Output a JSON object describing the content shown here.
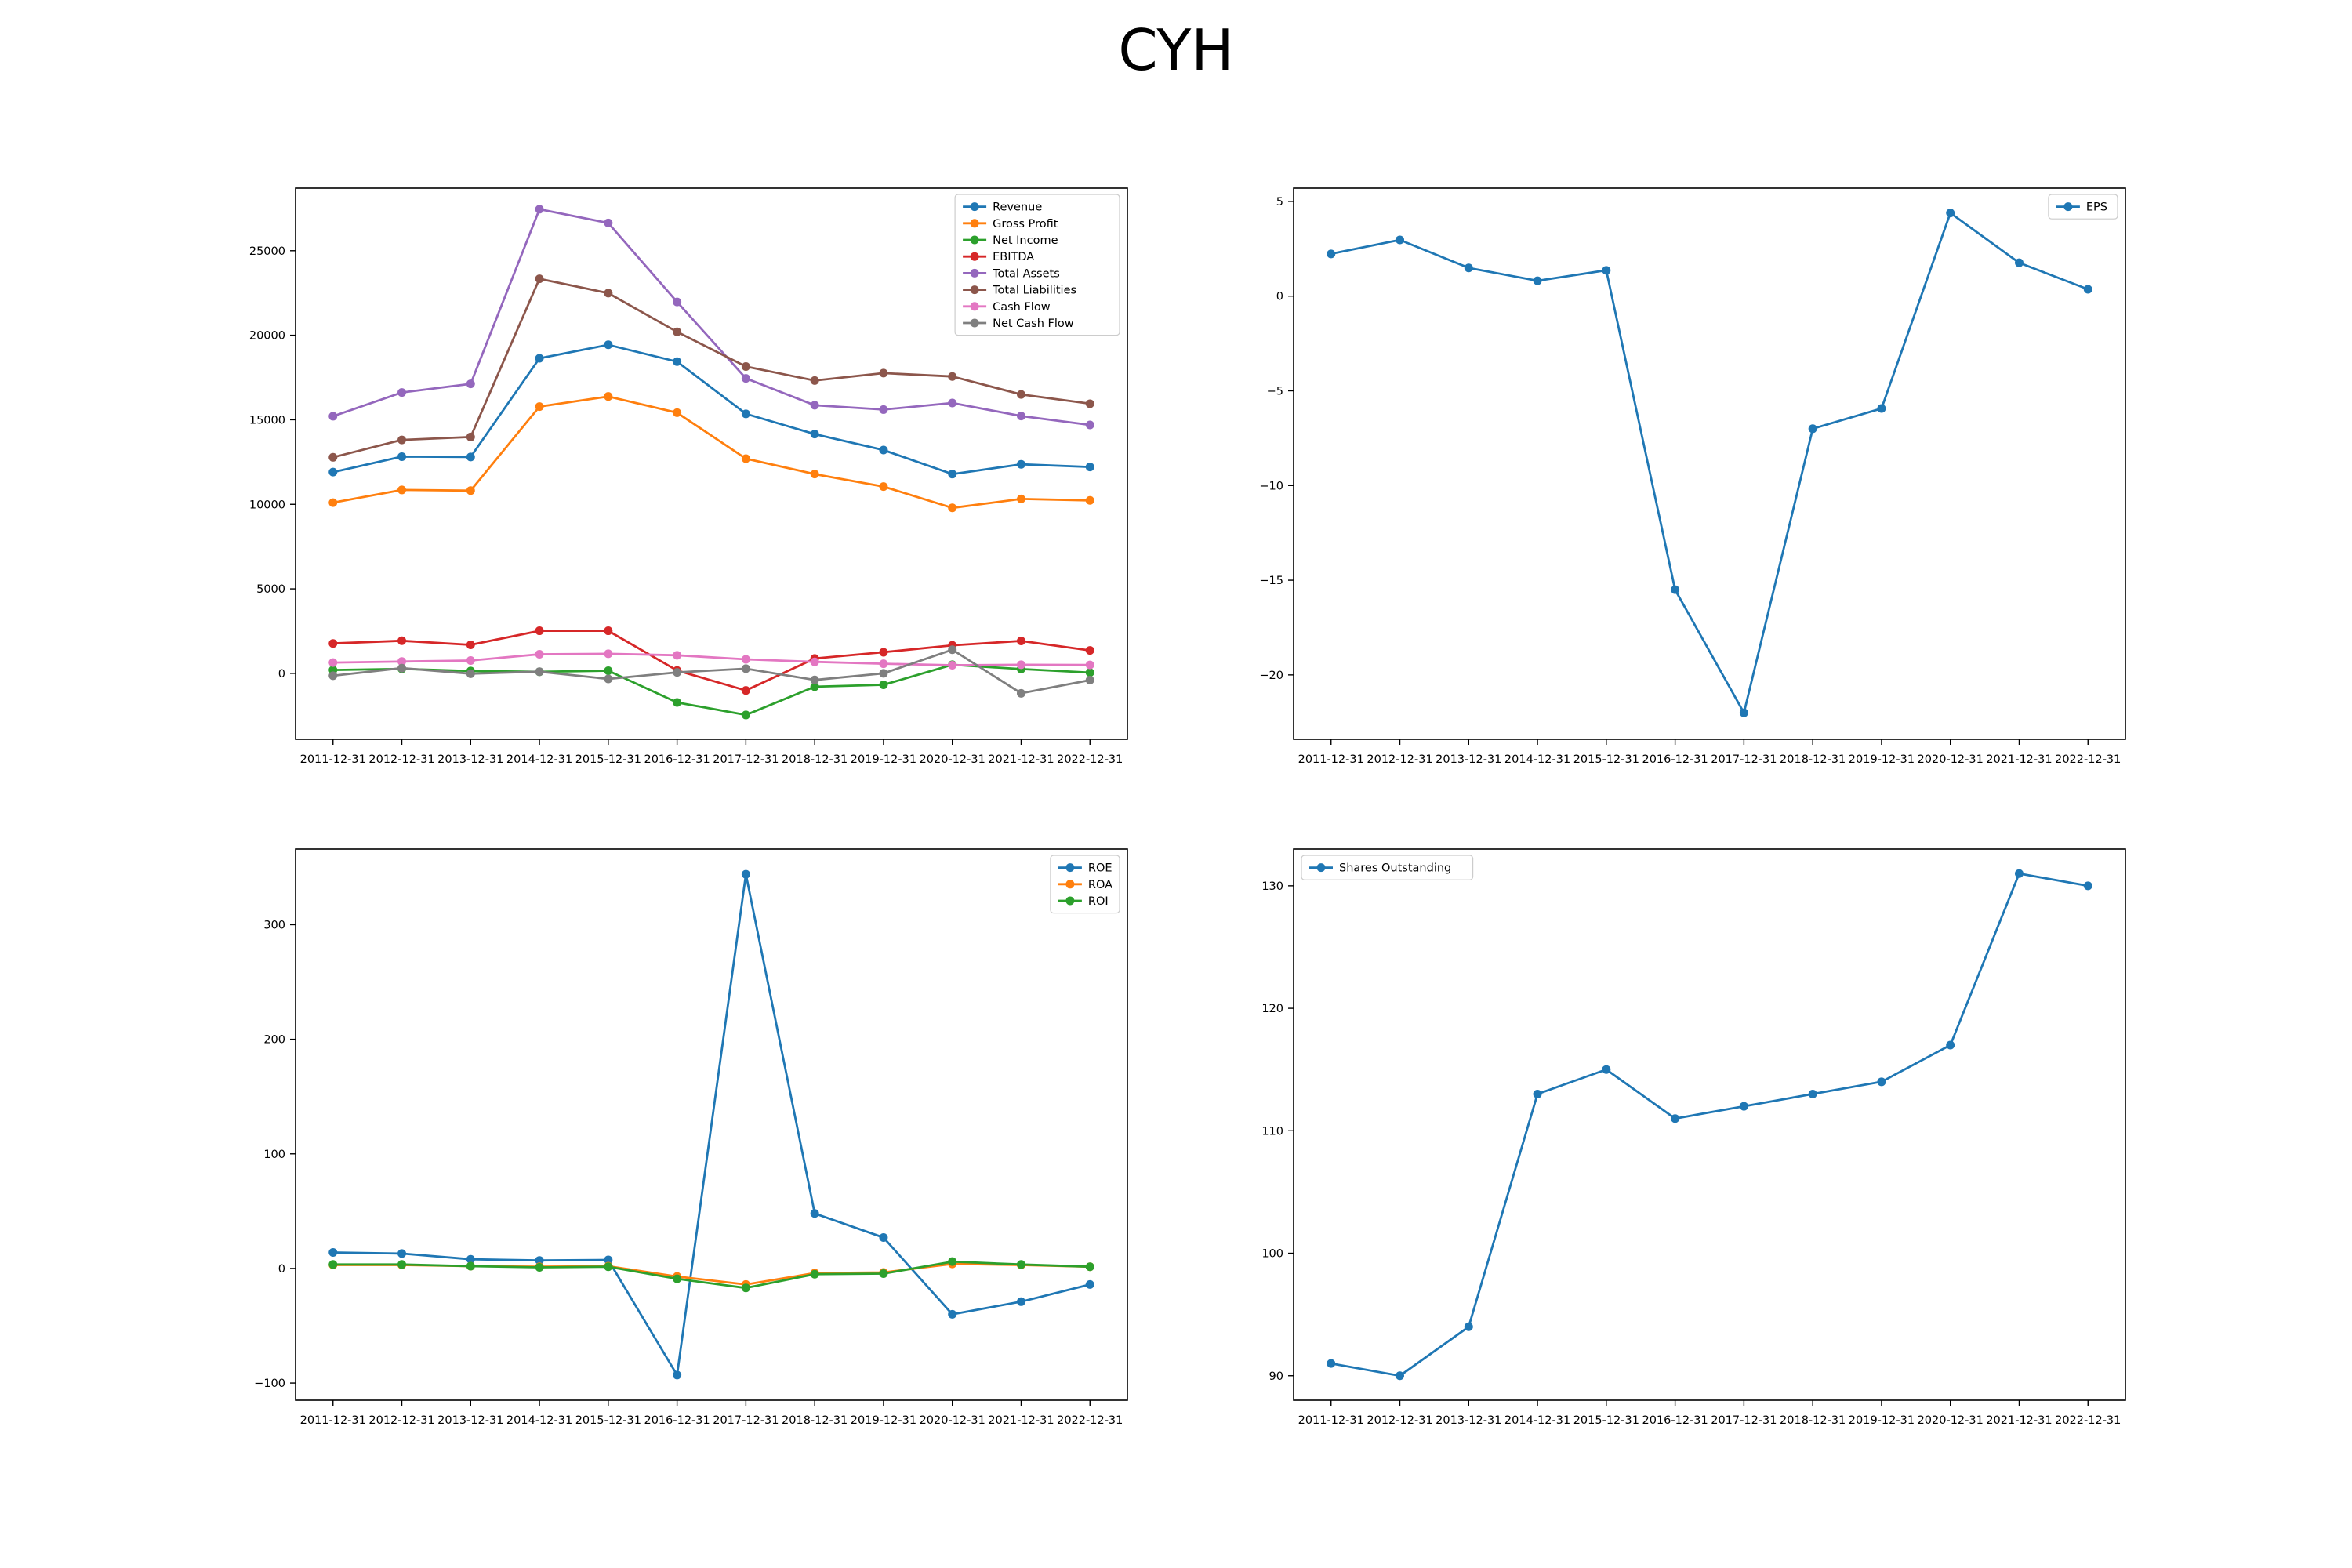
{
  "figure": {
    "title": "CYH"
  },
  "chart_data": [
    {
      "type": "line",
      "categories": [
        "2011-12-31",
        "2012-12-31",
        "2013-12-31",
        "2014-12-31",
        "2015-12-31",
        "2016-12-31",
        "2017-12-31",
        "2018-12-31",
        "2019-12-31",
        "2020-12-31",
        "2021-12-31",
        "2022-12-31"
      ],
      "ylim": [
        -3900,
        28700
      ],
      "yticks": [
        0,
        5000,
        10000,
        15000,
        20000,
        25000
      ],
      "legend": "top-right",
      "grid": false,
      "series": [
        {
          "name": "Revenue",
          "color": "#1f77b4",
          "values": [
            11906,
            12820,
            12802,
            18639,
            19437,
            18438,
            15353,
            14155,
            13210,
            11789,
            12368,
            12211
          ]
        },
        {
          "name": "Gross Profit",
          "color": "#ff7f0e",
          "values": [
            10100,
            10850,
            10810,
            15780,
            16380,
            15420,
            12700,
            11790,
            11050,
            9790,
            10320,
            10230
          ]
        },
        {
          "name": "Net Income",
          "color": "#2ca02c",
          "values": [
            201,
            266,
            141,
            92,
            158,
            -1721,
            -2459,
            -788,
            -675,
            511,
            257,
            46
          ]
        },
        {
          "name": "EBITDA",
          "color": "#d62728",
          "values": [
            1770,
            1930,
            1690,
            2520,
            2520,
            170,
            -1010,
            880,
            1250,
            1660,
            1920,
            1360
          ]
        },
        {
          "name": "Total Assets",
          "color": "#9467bd",
          "values": [
            15209,
            16614,
            17127,
            27453,
            26643,
            21973,
            17450,
            15859,
            15603,
            15993,
            15224,
            14695
          ]
        },
        {
          "name": "Total Liabilities",
          "color": "#8c564b",
          "values": [
            12780,
            13810,
            13980,
            23340,
            22490,
            20200,
            18150,
            17320,
            17760,
            17560,
            16500,
            15950
          ]
        },
        {
          "name": "Cash Flow",
          "color": "#e377c2",
          "values": [
            640,
            700,
            760,
            1130,
            1160,
            1070,
            830,
            680,
            570,
            480,
            510,
            500
          ]
        },
        {
          "name": "Net Cash Flow",
          "color": "#7f7f7f",
          "values": [
            -140,
            310,
            -20,
            100,
            -330,
            60,
            280,
            -390,
            0,
            1400,
            -1180,
            -400
          ]
        }
      ]
    },
    {
      "type": "line",
      "categories": [
        "2011-12-31",
        "2012-12-31",
        "2013-12-31",
        "2014-12-31",
        "2015-12-31",
        "2016-12-31",
        "2017-12-31",
        "2018-12-31",
        "2019-12-31",
        "2020-12-31",
        "2021-12-31",
        "2022-12-31"
      ],
      "ylim": [
        -23.4,
        5.7
      ],
      "yticks": [
        -20,
        -15,
        -10,
        -5,
        0,
        5
      ],
      "legend": "top-right",
      "grid": false,
      "series": [
        {
          "name": "EPS",
          "color": "#1f77b4",
          "values": [
            2.23,
            2.97,
            1.49,
            0.81,
            1.36,
            -15.5,
            -22.0,
            -7.0,
            -5.93,
            4.39,
            1.76,
            0.36
          ]
        }
      ]
    },
    {
      "type": "line",
      "categories": [
        "2011-12-31",
        "2012-12-31",
        "2013-12-31",
        "2014-12-31",
        "2015-12-31",
        "2016-12-31",
        "2017-12-31",
        "2018-12-31",
        "2019-12-31",
        "2020-12-31",
        "2021-12-31",
        "2022-12-31"
      ],
      "ylim": [
        -115,
        366
      ],
      "yticks": [
        -100,
        0,
        100,
        200,
        300
      ],
      "legend": "top-right",
      "grid": false,
      "series": [
        {
          "name": "ROE",
          "color": "#1f77b4",
          "values": [
            14.0,
            13.0,
            8.0,
            7.0,
            7.5,
            -93.0,
            344.0,
            48.0,
            27.0,
            -40.0,
            -29.0,
            -14.0
          ]
        },
        {
          "name": "ROA",
          "color": "#ff7f0e",
          "values": [
            3.0,
            3.0,
            2.0,
            1.5,
            2.0,
            -7.0,
            -14.0,
            -4.0,
            -3.5,
            4.0,
            3.0,
            1.5
          ]
        },
        {
          "name": "ROI",
          "color": "#2ca02c",
          "values": [
            3.5,
            3.5,
            2.0,
            1.0,
            1.5,
            -9.0,
            -17.0,
            -5.0,
            -4.5,
            6.0,
            3.5,
            1.5
          ]
        }
      ]
    },
    {
      "type": "line",
      "categories": [
        "2011-12-31",
        "2012-12-31",
        "2013-12-31",
        "2014-12-31",
        "2015-12-31",
        "2016-12-31",
        "2017-12-31",
        "2018-12-31",
        "2019-12-31",
        "2020-12-31",
        "2021-12-31",
        "2022-12-31"
      ],
      "ylim": [
        88.0,
        133.0
      ],
      "yticks": [
        90,
        100,
        110,
        120,
        130
      ],
      "legend": "top-left",
      "grid": false,
      "series": [
        {
          "name": "Shares Outstanding",
          "color": "#1f77b4",
          "values": [
            91,
            90,
            94,
            113,
            115,
            111,
            112,
            113,
            114,
            117,
            131,
            130
          ]
        }
      ]
    }
  ]
}
